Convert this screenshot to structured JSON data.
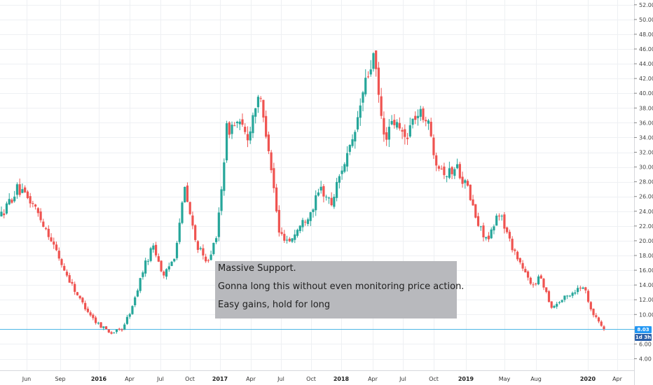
{
  "chart_data": {
    "type": "candlestick",
    "y_axis": {
      "position": "right",
      "ticks": [
        "4.00",
        "6.00",
        "8.00",
        "10.00",
        "12.00",
        "14.00",
        "16.00",
        "18.00",
        "20.00",
        "22.00",
        "24.00",
        "26.00",
        "28.00",
        "30.00",
        "32.00",
        "34.00",
        "36.00",
        "38.00",
        "40.00",
        "42.00",
        "44.00",
        "46.00",
        "48.00",
        "50.00",
        "52.00"
      ],
      "range": [
        2.5,
        53
      ]
    },
    "x_axis": {
      "ticks": [
        {
          "label": "Jun",
          "year": false
        },
        {
          "label": "Sep",
          "year": false
        },
        {
          "label": "2016",
          "year": true
        },
        {
          "label": "Apr",
          "year": false
        },
        {
          "label": "Jul",
          "year": false
        },
        {
          "label": "Oct",
          "year": false
        },
        {
          "label": "2017",
          "year": true
        },
        {
          "label": "Apr",
          "year": false
        },
        {
          "label": "Jul",
          "year": false
        },
        {
          "label": "Oct",
          "year": false
        },
        {
          "label": "2018",
          "year": true
        },
        {
          "label": "Apr",
          "year": false
        },
        {
          "label": "Jul",
          "year": false
        },
        {
          "label": "Oct",
          "year": false
        },
        {
          "label": "2019",
          "year": true
        },
        {
          "label": "May",
          "year": false
        },
        {
          "label": "Aug",
          "year": false
        },
        {
          "label": "2020",
          "year": true
        },
        {
          "label": "Apr",
          "year": false
        }
      ]
    },
    "grid": true,
    "colors": {
      "up": "#26a69a",
      "down": "#ef5350",
      "price_line": "#4db6e6",
      "grid": "#eef0f3"
    },
    "price_key_points": [
      {
        "i": 0,
        "v": 23.5
      },
      {
        "i": 6,
        "v": 27
      },
      {
        "i": 12,
        "v": 25
      },
      {
        "i": 18,
        "v": 21
      },
      {
        "i": 24,
        "v": 16
      },
      {
        "i": 30,
        "v": 12
      },
      {
        "i": 36,
        "v": 9
      },
      {
        "i": 42,
        "v": 7.5
      },
      {
        "i": 46,
        "v": 8
      },
      {
        "i": 50,
        "v": 11
      },
      {
        "i": 54,
        "v": 16
      },
      {
        "i": 58,
        "v": 19.5
      },
      {
        "i": 62,
        "v": 15
      },
      {
        "i": 66,
        "v": 18
      },
      {
        "i": 70,
        "v": 27
      },
      {
        "i": 74,
        "v": 20
      },
      {
        "i": 78,
        "v": 17
      },
      {
        "i": 82,
        "v": 20
      },
      {
        "i": 86,
        "v": 35
      },
      {
        "i": 90,
        "v": 36
      },
      {
        "i": 94,
        "v": 34
      },
      {
        "i": 98,
        "v": 40
      },
      {
        "i": 102,
        "v": 33
      },
      {
        "i": 106,
        "v": 21
      },
      {
        "i": 110,
        "v": 20
      },
      {
        "i": 114,
        "v": 22
      },
      {
        "i": 118,
        "v": 24
      },
      {
        "i": 122,
        "v": 27
      },
      {
        "i": 126,
        "v": 25
      },
      {
        "i": 130,
        "v": 30
      },
      {
        "i": 134,
        "v": 33
      },
      {
        "i": 138,
        "v": 40
      },
      {
        "i": 142,
        "v": 45
      },
      {
        "i": 146,
        "v": 34
      },
      {
        "i": 150,
        "v": 36
      },
      {
        "i": 154,
        "v": 34
      },
      {
        "i": 158,
        "v": 37
      },
      {
        "i": 162,
        "v": 37
      },
      {
        "i": 166,
        "v": 31
      },
      {
        "i": 170,
        "v": 29
      },
      {
        "i": 174,
        "v": 30
      },
      {
        "i": 178,
        "v": 27
      },
      {
        "i": 182,
        "v": 22
      },
      {
        "i": 186,
        "v": 20
      },
      {
        "i": 190,
        "v": 24
      },
      {
        "i": 194,
        "v": 20
      },
      {
        "i": 198,
        "v": 17
      },
      {
        "i": 202,
        "v": 14
      },
      {
        "i": 206,
        "v": 15
      },
      {
        "i": 210,
        "v": 11
      },
      {
        "i": 214,
        "v": 12
      },
      {
        "i": 218,
        "v": 13
      },
      {
        "i": 222,
        "v": 14
      },
      {
        "i": 226,
        "v": 10
      },
      {
        "i": 230,
        "v": 8.03
      }
    ],
    "last_price": "8.03",
    "countdown": "1d 3h",
    "annotation": {
      "lines": [
        "Massive Support.",
        "Gonna long this without even monitoring price action.",
        "Easy gains, hold for long"
      ]
    }
  }
}
